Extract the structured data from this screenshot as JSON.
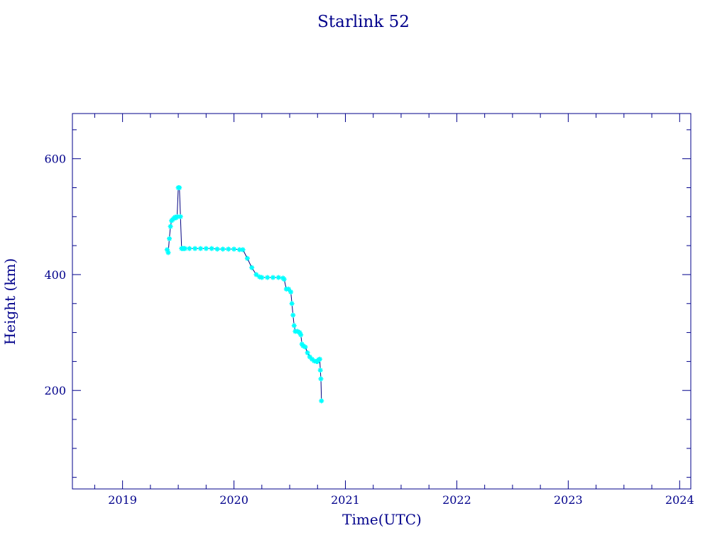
{
  "chart_data": {
    "type": "line",
    "title": "Starlink 52",
    "xlabel": "Time(UTC)",
    "ylabel": "Height (km)",
    "xlim": [
      2018.55,
      2024.1
    ],
    "ylim": [
      30,
      678
    ],
    "x_ticks": [
      2019,
      2020,
      2021,
      2022,
      2023,
      2024
    ],
    "x_tick_labels": [
      "2019",
      "2020",
      "2021",
      "2022",
      "2023",
      "2024"
    ],
    "y_ticks": [
      200,
      400,
      600
    ],
    "y_tick_labels": [
      "200",
      "400",
      "600"
    ],
    "grid": false,
    "colors": {
      "axes": "#00008b",
      "text": "#00008b",
      "line": "#000080",
      "marker": "#00ffff"
    },
    "series": [
      {
        "marker": "asterisk",
        "x": [
          2019.4,
          2019.41,
          2019.42,
          2019.43,
          2019.44,
          2019.45,
          2019.46,
          2019.47,
          2019.48,
          2019.49,
          2019.5,
          2019.51,
          2019.52,
          2019.53,
          2019.54,
          2019.55,
          2019.56,
          2019.6,
          2019.65,
          2019.7,
          2019.75,
          2019.8,
          2019.85,
          2019.9,
          2019.95,
          2020.0,
          2020.05,
          2020.08,
          2020.12,
          2020.16,
          2020.2,
          2020.23,
          2020.25,
          2020.3,
          2020.35,
          2020.4,
          2020.44,
          2020.45,
          2020.47,
          2020.49,
          2020.51,
          2020.52,
          2020.53,
          2020.54,
          2020.55,
          2020.57,
          2020.59,
          2020.6,
          2020.61,
          2020.62,
          2020.64,
          2020.66,
          2020.68,
          2020.7,
          2020.72,
          2020.74,
          2020.75,
          2020.76,
          2020.77,
          2020.775,
          2020.78,
          2020.785
        ],
        "y": [
          443,
          438,
          462,
          483,
          493,
          495,
          497,
          499,
          498,
          500,
          550,
          550,
          500,
          445,
          445,
          445,
          445,
          445,
          445,
          445,
          445,
          445,
          444,
          444,
          444,
          444,
          443,
          443,
          428,
          412,
          400,
          396,
          395,
          395,
          395,
          395,
          394,
          392,
          375,
          375,
          370,
          350,
          330,
          312,
          302,
          302,
          300,
          296,
          280,
          277,
          275,
          265,
          258,
          254,
          251,
          250,
          250,
          253,
          254,
          235,
          220,
          182
        ]
      }
    ]
  }
}
